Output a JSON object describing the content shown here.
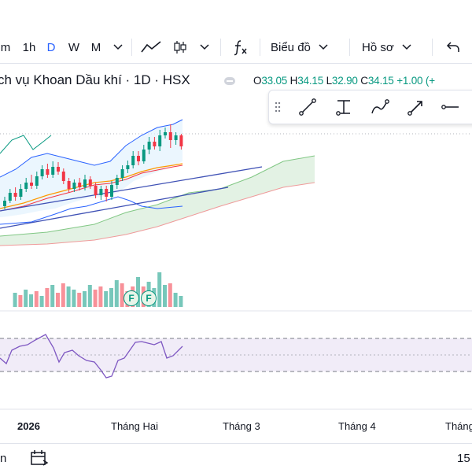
{
  "toolbar": {
    "interval_partial": "m",
    "interval_1h": "1h",
    "interval_d": "D",
    "interval_w": "W",
    "interval_m": "M",
    "indicator_label": "Biểu đồ",
    "profile_label": "Hồ sơ",
    "icons": [
      "chevron-down-icon",
      "line-chart-icon",
      "candles-icon",
      "fx-icon",
      "undo-icon"
    ]
  },
  "symbol": {
    "title": "ch vụ Khoan Dầu khí · 1D · HSX"
  },
  "ohlc": {
    "o_label": "O",
    "o_value": "33.05",
    "h_label": "H",
    "h_value": "34.15",
    "l_label": "L",
    "l_value": "32.90",
    "c_label": "C",
    "c_value": "34.15",
    "change": "+1.00 (+",
    "color": "#089981"
  },
  "drawing_tools": [
    "drag-handle-icon",
    "trend-line-icon",
    "ray-icon",
    "brush-icon",
    "arrow-icon",
    "horizontal-line-icon"
  ],
  "time_axis": {
    "labels": [
      "2026",
      "Tháng Hai",
      "Tháng 3",
      "Tháng 4",
      "Tháng"
    ]
  },
  "volume_badges": [
    "F",
    "F"
  ],
  "bottom_bar": {
    "left_text": "n",
    "right_text": "15"
  },
  "colors": {
    "up": "#089981",
    "down": "#f23645",
    "bollinger": "#2962ff",
    "ichimoku_cloud": "#a5d6a7",
    "rsi_line": "#7e57c2",
    "rsi_band": "#ede7f6"
  }
}
